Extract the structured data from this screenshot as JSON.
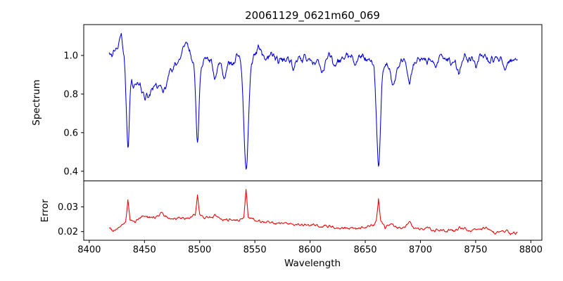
{
  "figure": {
    "title": "20061129_0621m60_069"
  },
  "chart_data": {
    "type": "line",
    "title": "20061129_0621m60_069",
    "xlabel": "Wavelength",
    "grid": false,
    "legend": "none",
    "xlim": [
      8395,
      8810
    ],
    "x_range": [
      8418,
      8788
    ],
    "x_ticks": [
      8400,
      8450,
      8500,
      8550,
      8600,
      8650,
      8700,
      8750,
      8800
    ],
    "panels": [
      {
        "name": "spectrum",
        "ylabel": "Spectrum",
        "color": "#0000dd",
        "ylim": [
          0.35,
          1.16
        ],
        "y_ticks": [
          0.4,
          0.6,
          0.8,
          1.0
        ],
        "tick_decimals": 1,
        "noise": 0.03,
        "seed": 12345,
        "anchors": [
          [
            8418,
            1.0
          ],
          [
            8424,
            1.01
          ],
          [
            8429,
            1.1
          ],
          [
            8433,
            0.96
          ],
          [
            8438,
            0.92
          ],
          [
            8444,
            0.86
          ],
          [
            8450,
            0.82
          ],
          [
            8455,
            0.81
          ],
          [
            8460,
            0.84
          ],
          [
            8465,
            0.83
          ],
          [
            8470,
            0.89
          ],
          [
            8474,
            0.92
          ],
          [
            8478,
            0.95
          ],
          [
            8483,
            1.0
          ],
          [
            8488,
            1.06
          ],
          [
            8492,
            1.0
          ],
          [
            8496,
            0.97
          ],
          [
            8503,
            0.95
          ],
          [
            8507,
            1.0
          ],
          [
            8512,
            0.94
          ],
          [
            8517,
            0.97
          ],
          [
            8521,
            0.94
          ],
          [
            8526,
            0.96
          ],
          [
            8531,
            0.97
          ],
          [
            8535,
            1.01
          ],
          [
            8539,
            0.97
          ],
          [
            8545,
            0.96
          ],
          [
            8550,
            1.0
          ],
          [
            8554,
            1.04
          ],
          [
            8559,
            0.98
          ],
          [
            8565,
            1.0
          ],
          [
            8572,
            0.97
          ],
          [
            8580,
            0.99
          ],
          [
            8588,
            0.97
          ],
          [
            8596,
            0.99
          ],
          [
            8604,
            0.97
          ],
          [
            8612,
            0.97
          ],
          [
            8618,
            1.0
          ],
          [
            8626,
            0.97
          ],
          [
            8634,
            1.0
          ],
          [
            8642,
            0.98
          ],
          [
            8650,
            0.99
          ],
          [
            8656,
            0.97
          ],
          [
            8662,
            0.95
          ],
          [
            8668,
            0.95
          ],
          [
            8676,
            0.94
          ],
          [
            8684,
            0.97
          ],
          [
            8692,
            0.96
          ],
          [
            8700,
            0.98
          ],
          [
            8708,
            0.97
          ],
          [
            8716,
            0.99
          ],
          [
            8724,
            0.98
          ],
          [
            8732,
            0.96
          ],
          [
            8740,
            0.99
          ],
          [
            8748,
            0.98
          ],
          [
            8756,
            1.0
          ],
          [
            8764,
            0.97
          ],
          [
            8772,
            0.99
          ],
          [
            8780,
            0.97
          ],
          [
            8788,
            0.97
          ]
        ],
        "absorption_lines": [
          {
            "c": 8435,
            "d": 0.42,
            "w": 1.3
          },
          {
            "c": 8440,
            "d": 0.07,
            "w": 1.5
          },
          {
            "c": 8451,
            "d": 0.04,
            "w": 2.0
          },
          {
            "c": 8468,
            "d": 0.04,
            "w": 2.0
          },
          {
            "c": 8498,
            "d": 0.42,
            "w": 1.4
          },
          {
            "c": 8514,
            "d": 0.06,
            "w": 1.5
          },
          {
            "c": 8523,
            "d": 0.05,
            "w": 1.5
          },
          {
            "c": 8542,
            "d": 0.56,
            "w": 2.0
          },
          {
            "c": 8585,
            "d": 0.05,
            "w": 1.5
          },
          {
            "c": 8611,
            "d": 0.06,
            "w": 1.5
          },
          {
            "c": 8622,
            "d": 0.04,
            "w": 1.2
          },
          {
            "c": 8641,
            "d": 0.04,
            "w": 1.2
          },
          {
            "c": 8662,
            "d": 0.53,
            "w": 1.8
          },
          {
            "c": 8675,
            "d": 0.1,
            "w": 1.8
          },
          {
            "c": 8690,
            "d": 0.1,
            "w": 1.8
          },
          {
            "c": 8713,
            "d": 0.04,
            "w": 1.5
          },
          {
            "c": 8735,
            "d": 0.07,
            "w": 1.5
          },
          {
            "c": 8751,
            "d": 0.04,
            "w": 1.2
          },
          {
            "c": 8776,
            "d": 0.05,
            "w": 1.5
          }
        ]
      },
      {
        "name": "error",
        "ylabel": "Error",
        "color": "#ee0000",
        "ylim": [
          0.0165,
          0.0405
        ],
        "y_ticks": [
          0.02,
          0.03
        ],
        "tick_decimals": 2,
        "noise": 0.0009,
        "seed": 99,
        "anchors": [
          [
            8418,
            0.0215
          ],
          [
            8422,
            0.0205
          ],
          [
            8426,
            0.0215
          ],
          [
            8430,
            0.0225
          ],
          [
            8433,
            0.024
          ],
          [
            8435,
            0.033
          ],
          [
            8437,
            0.0245
          ],
          [
            8441,
            0.024
          ],
          [
            8445,
            0.025
          ],
          [
            8449,
            0.0265
          ],
          [
            8453,
            0.026
          ],
          [
            8457,
            0.0255
          ],
          [
            8461,
            0.026
          ],
          [
            8465,
            0.0275
          ],
          [
            8469,
            0.026
          ],
          [
            8473,
            0.0255
          ],
          [
            8477,
            0.025
          ],
          [
            8481,
            0.0255
          ],
          [
            8485,
            0.025
          ],
          [
            8490,
            0.0255
          ],
          [
            8494,
            0.026
          ],
          [
            8496,
            0.027
          ],
          [
            8498,
            0.035
          ],
          [
            8500,
            0.027
          ],
          [
            8504,
            0.026
          ],
          [
            8508,
            0.0255
          ],
          [
            8512,
            0.026
          ],
          [
            8514,
            0.027
          ],
          [
            8518,
            0.025
          ],
          [
            8524,
            0.0245
          ],
          [
            8530,
            0.025
          ],
          [
            8536,
            0.0245
          ],
          [
            8540,
            0.026
          ],
          [
            8542,
            0.0375
          ],
          [
            8544,
            0.026
          ],
          [
            8550,
            0.0245
          ],
          [
            8556,
            0.024
          ],
          [
            8564,
            0.0235
          ],
          [
            8572,
            0.0235
          ],
          [
            8580,
            0.023
          ],
          [
            8588,
            0.023
          ],
          [
            8596,
            0.0225
          ],
          [
            8604,
            0.0225
          ],
          [
            8612,
            0.022
          ],
          [
            8620,
            0.022
          ],
          [
            8628,
            0.0215
          ],
          [
            8636,
            0.0215
          ],
          [
            8644,
            0.0215
          ],
          [
            8652,
            0.022
          ],
          [
            8658,
            0.0225
          ],
          [
            8660,
            0.024
          ],
          [
            8662,
            0.033
          ],
          [
            8664,
            0.024
          ],
          [
            8668,
            0.022
          ],
          [
            8674,
            0.023
          ],
          [
            8680,
            0.0215
          ],
          [
            8686,
            0.022
          ],
          [
            8690,
            0.0245
          ],
          [
            8694,
            0.021
          ],
          [
            8700,
            0.021
          ],
          [
            8706,
            0.0215
          ],
          [
            8712,
            0.0205
          ],
          [
            8718,
            0.021
          ],
          [
            8724,
            0.0205
          ],
          [
            8730,
            0.0205
          ],
          [
            8736,
            0.0215
          ],
          [
            8742,
            0.0205
          ],
          [
            8748,
            0.0205
          ],
          [
            8754,
            0.021
          ],
          [
            8760,
            0.0215
          ],
          [
            8766,
            0.0195
          ],
          [
            8772,
            0.0195
          ],
          [
            8778,
            0.0205
          ],
          [
            8782,
            0.019
          ],
          [
            8786,
            0.0195
          ],
          [
            8788,
            0.02
          ]
        ],
        "absorption_lines": []
      }
    ]
  }
}
